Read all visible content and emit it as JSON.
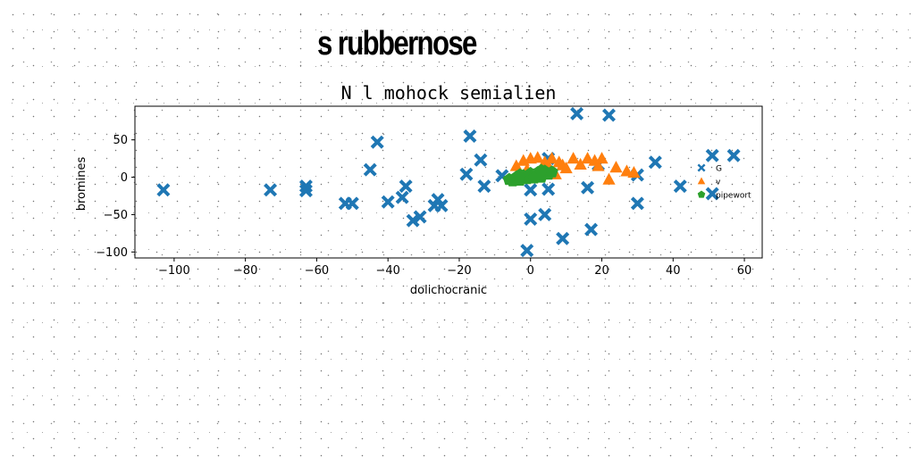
{
  "headline": "s rubbernose",
  "chart_data": {
    "type": "scatter",
    "title": "N l mohock semialien",
    "xlabel": "dolichocranic",
    "ylabel": "bromines",
    "xlim": [
      -111,
      65
    ],
    "ylim": [
      -108,
      95
    ],
    "xticks": [
      -100,
      -80,
      -60,
      -40,
      -20,
      0,
      20,
      40,
      60
    ],
    "yticks": [
      -100,
      -50,
      0,
      50
    ],
    "grid": false,
    "legend_position": "right",
    "series": [
      {
        "name": "G",
        "marker": "X",
        "color": "#1f77b4",
        "points": [
          [
            -103,
            -17
          ],
          [
            -73,
            -17
          ],
          [
            -63,
            -12
          ],
          [
            -63,
            -18
          ],
          [
            -52,
            -35
          ],
          [
            -50,
            -35
          ],
          [
            -45,
            10
          ],
          [
            -43,
            47
          ],
          [
            -40,
            -33
          ],
          [
            -36,
            -27
          ],
          [
            -35,
            -12
          ],
          [
            -33,
            -58
          ],
          [
            -31,
            -53
          ],
          [
            -27,
            -38
          ],
          [
            -26,
            -30
          ],
          [
            -25,
            -38
          ],
          [
            -18,
            4
          ],
          [
            -17,
            55
          ],
          [
            -14,
            23
          ],
          [
            -13,
            -12
          ],
          [
            -8,
            2
          ],
          [
            -1,
            -98
          ],
          [
            0,
            -56
          ],
          [
            0,
            -17
          ],
          [
            4,
            -50
          ],
          [
            5,
            25
          ],
          [
            5,
            -16
          ],
          [
            9,
            -82
          ],
          [
            13,
            85
          ],
          [
            16,
            -14
          ],
          [
            17,
            -70
          ],
          [
            19,
            17
          ],
          [
            22,
            83
          ],
          [
            30,
            3
          ],
          [
            30,
            -35
          ],
          [
            35,
            20
          ],
          [
            42,
            -12
          ],
          [
            51,
            29
          ],
          [
            51,
            -22
          ],
          [
            57,
            29
          ]
        ]
      },
      {
        "name": "v",
        "marker": "triangle",
        "color": "#ff7f0e",
        "points": [
          [
            -4,
            15
          ],
          [
            -2,
            22
          ],
          [
            0,
            25
          ],
          [
            2,
            26
          ],
          [
            4,
            20
          ],
          [
            5,
            15
          ],
          [
            6,
            25
          ],
          [
            8,
            20
          ],
          [
            9,
            16
          ],
          [
            10,
            12
          ],
          [
            12,
            25
          ],
          [
            14,
            17
          ],
          [
            16,
            25
          ],
          [
            18,
            22
          ],
          [
            19,
            15
          ],
          [
            20,
            25
          ],
          [
            22,
            -3
          ],
          [
            24,
            13
          ],
          [
            27,
            8
          ],
          [
            29,
            6
          ],
          [
            -1,
            10
          ],
          [
            3,
            5
          ],
          [
            7,
            4
          ]
        ]
      },
      {
        "name": "pipewort",
        "marker": "pentagon",
        "color": "#2ca02c",
        "points": [
          [
            -6,
            -3
          ],
          [
            -5,
            -5
          ],
          [
            -4,
            0
          ],
          [
            -3,
            -4
          ],
          [
            -2,
            2
          ],
          [
            -1,
            -2
          ],
          [
            0,
            5
          ],
          [
            1,
            3
          ],
          [
            2,
            6
          ],
          [
            3,
            0
          ],
          [
            4,
            8
          ],
          [
            5,
            4
          ],
          [
            6,
            7
          ],
          [
            -3,
            3
          ],
          [
            1,
            -1
          ],
          [
            3,
            9
          ]
        ]
      }
    ]
  }
}
